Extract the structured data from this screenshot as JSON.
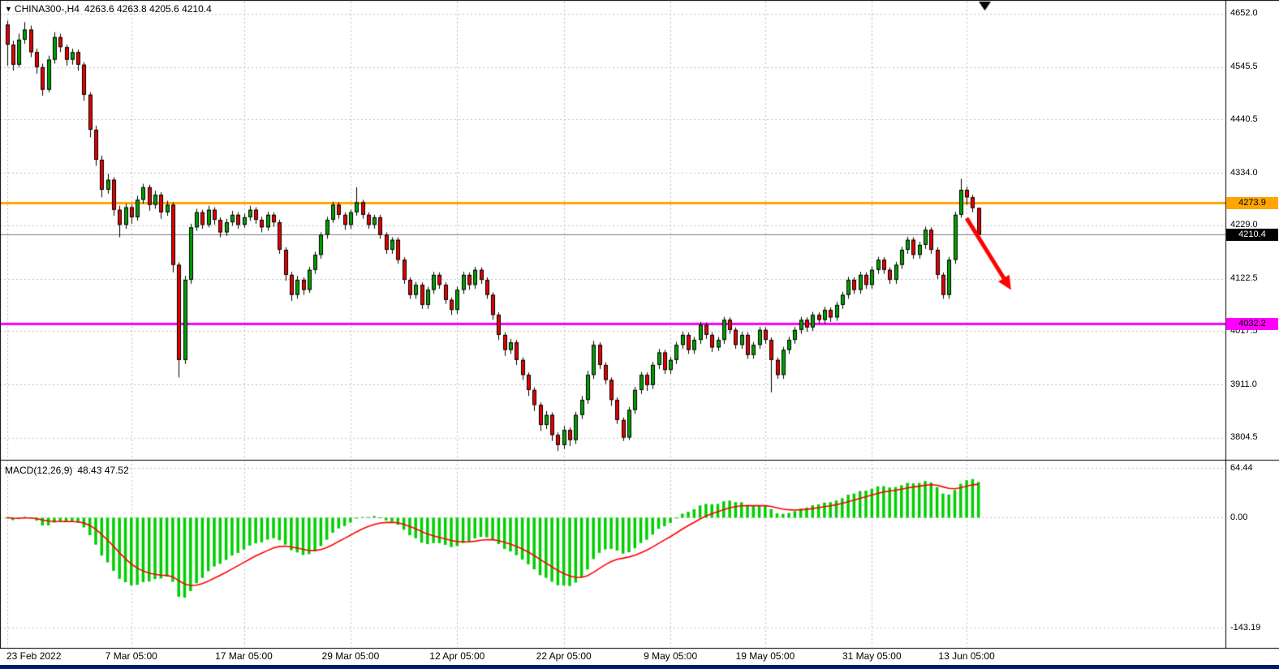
{
  "title": {
    "marker": "▼",
    "symbol": "CHINA300-,H4",
    "ohlc": "4263.6 4263.8 4205.6 4210.4"
  },
  "macd_info": {
    "label": "MACD(12,26,9)",
    "values": "48.43 47.52"
  },
  "price_axis_labels": [
    "4652.0",
    "4545.5",
    "4440.5",
    "4334.0",
    "4229.0",
    "4122.5",
    "4017.5",
    "3911.0",
    "3804.5"
  ],
  "macd_axis_labels": [
    "64.44",
    "0.00",
    "-143.19"
  ],
  "time_axis_labels": [
    {
      "label": "23 Feb 2022",
      "index": 0
    },
    {
      "label": "7 Mar 05:00",
      "index": 21
    },
    {
      "label": "17 Mar 05:00",
      "index": 40
    },
    {
      "label": "29 Mar 05:00",
      "index": 58
    },
    {
      "label": "12 Apr 05:00",
      "index": 76
    },
    {
      "label": "22 Apr 05:00",
      "index": 94
    },
    {
      "label": "9 May 05:00",
      "index": 112
    },
    {
      "label": "19 May 05:00",
      "index": 128
    },
    {
      "label": "31 May 05:00",
      "index": 146
    },
    {
      "label": "13 Jun 05:00",
      "index": 162
    }
  ],
  "price_tags": [
    {
      "value": "4273.9",
      "price": 4273.9,
      "bg": "#FFA500",
      "color": "#000000"
    },
    {
      "value": "4210.4",
      "price": 4210.4,
      "bg": "#000000",
      "color": "#FFFFFF"
    },
    {
      "value": "4032.2",
      "price": 4032.2,
      "bg": "#FF00FF",
      "color": "#000000"
    }
  ],
  "chart_data": {
    "type": "candlestick+macd",
    "symbol": "CHINA300-",
    "timeframe": "H4",
    "current_ohlc": {
      "open": 4263.6,
      "high": 4263.8,
      "low": 4205.6,
      "close": 4210.4
    },
    "price_axis_range": [
      3762,
      4676
    ],
    "macd_axis_range": [
      -168,
      72
    ],
    "macd_params": {
      "fast": 12,
      "slow": 26,
      "signal": 9,
      "last_macd": 48.43,
      "last_signal": 47.52
    },
    "hlines": [
      {
        "price": 4273.9,
        "color": "#FFA500",
        "width": 3
      },
      {
        "price": 4032.2,
        "color": "#FF00FF",
        "width": 3
      },
      {
        "price": 4210.4,
        "color": "#808080",
        "width": 1
      }
    ],
    "annotations": [
      {
        "type": "arrow",
        "from": {
          "index": 162,
          "price": 4243
        },
        "to": {
          "index": 169.5,
          "price": 4100
        },
        "color": "#FF0000"
      }
    ],
    "colors": {
      "background": "#FFFFFF",
      "bull": "#00A000",
      "bear": "#E60000",
      "wick": "#000000",
      "macd_histogram": "#00CF00",
      "macd_signal": "#FF0000",
      "grid": "#BEBEBE",
      "border": "#000000"
    },
    "candles": [
      [
        4630,
        4638,
        4548,
        4590
      ],
      [
        4590,
        4598,
        4538,
        4550
      ],
      [
        4550,
        4612,
        4545,
        4600
      ],
      [
        4600,
        4635,
        4592,
        4620
      ],
      [
        4620,
        4628,
        4565,
        4575
      ],
      [
        4575,
        4582,
        4532,
        4545
      ],
      [
        4545,
        4552,
        4488,
        4500
      ],
      [
        4500,
        4568,
        4495,
        4560
      ],
      [
        4560,
        4615,
        4552,
        4605
      ],
      [
        4605,
        4612,
        4575,
        4585
      ],
      [
        4585,
        4590,
        4548,
        4560
      ],
      [
        4560,
        4582,
        4550,
        4575
      ],
      [
        4575,
        4580,
        4538,
        4550
      ],
      [
        4550,
        4555,
        4478,
        4490
      ],
      [
        4490,
        4495,
        4405,
        4420
      ],
      [
        4420,
        4428,
        4348,
        4360
      ],
      [
        4360,
        4368,
        4285,
        4300
      ],
      [
        4300,
        4332,
        4292,
        4320
      ],
      [
        4320,
        4325,
        4248,
        4260
      ],
      [
        4260,
        4268,
        4205,
        4230
      ],
      [
        4230,
        4272,
        4222,
        4265
      ],
      [
        4265,
        4270,
        4232,
        4245
      ],
      [
        4245,
        4288,
        4238,
        4280
      ],
      [
        4280,
        4312,
        4272,
        4305
      ],
      [
        4305,
        4310,
        4258,
        4270
      ],
      [
        4270,
        4298,
        4262,
        4290
      ],
      [
        4290,
        4295,
        4242,
        4255
      ],
      [
        4255,
        4278,
        4248,
        4270
      ],
      [
        4270,
        4275,
        4135,
        4150
      ],
      [
        4150,
        4155,
        3925,
        3960
      ],
      [
        3960,
        4128,
        3952,
        4120
      ],
      [
        4120,
        4232,
        4112,
        4225
      ],
      [
        4225,
        4262,
        4218,
        4255
      ],
      [
        4255,
        4260,
        4222,
        4230
      ],
      [
        4230,
        4268,
        4225,
        4260
      ],
      [
        4260,
        4265,
        4230,
        4240
      ],
      [
        4240,
        4245,
        4205,
        4215
      ],
      [
        4215,
        4242,
        4208,
        4235
      ],
      [
        4235,
        4258,
        4228,
        4250
      ],
      [
        4250,
        4255,
        4222,
        4230
      ],
      [
        4230,
        4252,
        4224,
        4245
      ],
      [
        4245,
        4268,
        4238,
        4260
      ],
      [
        4260,
        4265,
        4232,
        4240
      ],
      [
        4240,
        4246,
        4215,
        4225
      ],
      [
        4225,
        4256,
        4218,
        4250
      ],
      [
        4250,
        4255,
        4226,
        4235
      ],
      [
        4235,
        4240,
        4172,
        4180
      ],
      [
        4180,
        4185,
        4118,
        4130
      ],
      [
        4130,
        4136,
        4078,
        4090
      ],
      [
        4090,
        4128,
        4082,
        4120
      ],
      [
        4120,
        4125,
        4090,
        4100
      ],
      [
        4100,
        4146,
        4094,
        4140
      ],
      [
        4140,
        4176,
        4132,
        4170
      ],
      [
        4170,
        4215,
        4162,
        4210
      ],
      [
        4210,
        4246,
        4202,
        4240
      ],
      [
        4240,
        4276,
        4234,
        4270
      ],
      [
        4270,
        4275,
        4242,
        4250
      ],
      [
        4250,
        4255,
        4220,
        4230
      ],
      [
        4230,
        4260,
        4222,
        4255
      ],
      [
        4255,
        4305,
        4248,
        4275
      ],
      [
        4275,
        4280,
        4242,
        4250
      ],
      [
        4250,
        4255,
        4222,
        4230
      ],
      [
        4230,
        4250,
        4222,
        4245
      ],
      [
        4245,
        4250,
        4202,
        4210
      ],
      [
        4210,
        4215,
        4172,
        4180
      ],
      [
        4180,
        4205,
        4172,
        4200
      ],
      [
        4200,
        4205,
        4152,
        4160
      ],
      [
        4160,
        4165,
        4112,
        4120
      ],
      [
        4120,
        4125,
        4082,
        4090
      ],
      [
        4090,
        4116,
        4082,
        4110
      ],
      [
        4110,
        4115,
        4062,
        4070
      ],
      [
        4070,
        4106,
        4062,
        4100
      ],
      [
        4100,
        4136,
        4092,
        4130
      ],
      [
        4130,
        4135,
        4102,
        4110
      ],
      [
        4110,
        4115,
        4072,
        4080
      ],
      [
        4080,
        4085,
        4050,
        4060
      ],
      [
        4060,
        4106,
        4052,
        4100
      ],
      [
        4100,
        4136,
        4092,
        4130
      ],
      [
        4130,
        4135,
        4100,
        4110
      ],
      [
        4110,
        4146,
        4102,
        4140
      ],
      [
        4140,
        4145,
        4112,
        4120
      ],
      [
        4120,
        4125,
        4082,
        4090
      ],
      [
        4090,
        4095,
        4040,
        4050
      ],
      [
        4050,
        4055,
        4000,
        4010
      ],
      [
        4010,
        4015,
        3968,
        3980
      ],
      [
        3980,
        4002,
        3972,
        3995
      ],
      [
        3995,
        4000,
        3950,
        3960
      ],
      [
        3960,
        3965,
        3920,
        3930
      ],
      [
        3930,
        3935,
        3888,
        3900
      ],
      [
        3900,
        3905,
        3858,
        3870
      ],
      [
        3870,
        3875,
        3818,
        3830
      ],
      [
        3830,
        3858,
        3822,
        3850
      ],
      [
        3850,
        3855,
        3798,
        3810
      ],
      [
        3810,
        3815,
        3778,
        3790
      ],
      [
        3790,
        3828,
        3782,
        3820
      ],
      [
        3820,
        3825,
        3788,
        3800
      ],
      [
        3800,
        3856,
        3792,
        3850
      ],
      [
        3850,
        3888,
        3842,
        3880
      ],
      [
        3880,
        3938,
        3872,
        3930
      ],
      [
        3930,
        3998,
        3922,
        3990
      ],
      [
        3990,
        3995,
        3942,
        3950
      ],
      [
        3950,
        3955,
        3912,
        3920
      ],
      [
        3920,
        3925,
        3868,
        3880
      ],
      [
        3880,
        3885,
        3832,
        3840
      ],
      [
        3840,
        3845,
        3798,
        3805
      ],
      [
        3805,
        3866,
        3800,
        3860
      ],
      [
        3860,
        3906,
        3852,
        3900
      ],
      [
        3900,
        3936,
        3892,
        3930
      ],
      [
        3930,
        3935,
        3898,
        3910
      ],
      [
        3910,
        3956,
        3902,
        3950
      ],
      [
        3950,
        3982,
        3942,
        3975
      ],
      [
        3975,
        3980,
        3932,
        3940
      ],
      [
        3940,
        3966,
        3932,
        3960
      ],
      [
        3960,
        3996,
        3952,
        3990
      ],
      [
        3990,
        4016,
        3982,
        4010
      ],
      [
        4010,
        4015,
        3972,
        3980
      ],
      [
        3980,
        4006,
        3972,
        4000
      ],
      [
        4000,
        4036,
        3992,
        4030
      ],
      [
        4030,
        4035,
        4002,
        4010
      ],
      [
        4010,
        4015,
        3976,
        3985
      ],
      [
        3985,
        4006,
        3978,
        4000
      ],
      [
        4000,
        4046,
        3992,
        4040
      ],
      [
        4040,
        4045,
        4012,
        4020
      ],
      [
        4020,
        4025,
        3982,
        3990
      ],
      [
        3990,
        4016,
        3982,
        4010
      ],
      [
        4010,
        4015,
        3962,
        3970
      ],
      [
        3970,
        3996,
        3962,
        3990
      ],
      [
        3990,
        4026,
        3982,
        4020
      ],
      [
        4020,
        4025,
        3992,
        4000
      ],
      [
        4000,
        4005,
        3895,
        3960
      ],
      [
        3960,
        3965,
        3922,
        3930
      ],
      [
        3930,
        3986,
        3922,
        3980
      ],
      [
        3980,
        4006,
        3972,
        4000
      ],
      [
        4000,
        4026,
        3992,
        4020
      ],
      [
        4020,
        4046,
        4012,
        4040
      ],
      [
        4040,
        4045,
        4016,
        4025
      ],
      [
        4025,
        4056,
        4018,
        4050
      ],
      [
        4050,
        4055,
        4032,
        4040
      ],
      [
        4040,
        4066,
        4032,
        4060
      ],
      [
        4060,
        4065,
        4036,
        4045
      ],
      [
        4045,
        4076,
        4038,
        4070
      ],
      [
        4070,
        4096,
        4062,
        4090
      ],
      [
        4090,
        4126,
        4082,
        4120
      ],
      [
        4120,
        4125,
        4092,
        4100
      ],
      [
        4100,
        4136,
        4092,
        4130
      ],
      [
        4130,
        4135,
        4102,
        4110
      ],
      [
        4110,
        4146,
        4102,
        4140
      ],
      [
        4140,
        4166,
        4132,
        4160
      ],
      [
        4160,
        4165,
        4132,
        4140
      ],
      [
        4140,
        4145,
        4112,
        4120
      ],
      [
        4120,
        4156,
        4112,
        4150
      ],
      [
        4150,
        4186,
        4142,
        4180
      ],
      [
        4180,
        4206,
        4172,
        4200
      ],
      [
        4200,
        4205,
        4162,
        4170
      ],
      [
        4170,
        4196,
        4162,
        4190
      ],
      [
        4190,
        4226,
        4182,
        4220
      ],
      [
        4220,
        4225,
        4172,
        4180
      ],
      [
        4180,
        4185,
        4122,
        4130
      ],
      [
        4130,
        4135,
        4082,
        4090
      ],
      [
        4090,
        4166,
        4082,
        4160
      ],
      [
        4160,
        4256,
        4152,
        4250
      ],
      [
        4250,
        4322,
        4244,
        4300
      ],
      [
        4300,
        4306,
        4270,
        4285
      ],
      [
        4285,
        4290,
        4255,
        4263.6
      ],
      [
        4263.6,
        4263.8,
        4205.6,
        4210.4
      ]
    ]
  }
}
